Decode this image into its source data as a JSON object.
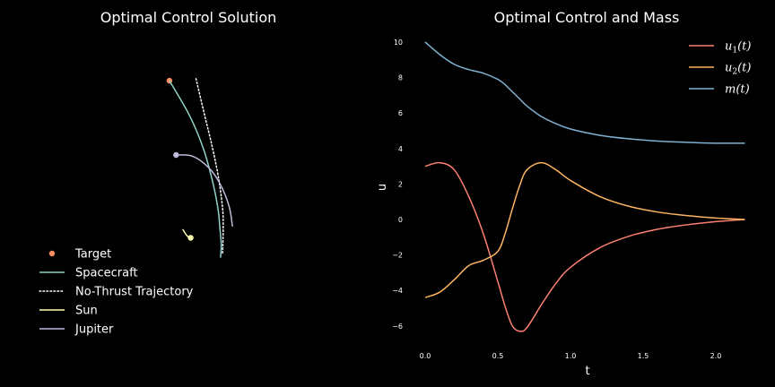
{
  "colors": {
    "background": "#000000",
    "text": "#ffffff",
    "target": "#fb8d62",
    "spacecraft": "#8dd3c7",
    "no_thrust": "#ffffff",
    "sun": "#ffffb3",
    "jupiter": "#bebada",
    "u1": "#fb8072",
    "u2": "#fdb462",
    "m": "#80b1d3"
  },
  "chart_data": [
    {
      "type": "line",
      "title": "Optimal Control Solution",
      "axes_visible": false,
      "legend": {
        "position": "bottom-left",
        "entries": [
          "Target",
          "Spacecraft",
          "No-Thrust Trajectory",
          "Sun",
          "Jupiter"
        ]
      },
      "series": [
        {
          "name": "Target",
          "style": "marker",
          "points": [
            [
              -0.15,
              1.62
            ]
          ]
        },
        {
          "name": "Spacecraft",
          "style": "solid",
          "points": [
            [
              -0.15,
              1.62
            ],
            [
              0.15,
              1.1
            ],
            [
              0.36,
              0.6
            ],
            [
              0.5,
              0.1
            ],
            [
              0.58,
              -0.3
            ],
            [
              0.61,
              -0.6
            ],
            [
              0.63,
              -0.85
            ],
            [
              0.62,
              -1.05
            ]
          ]
        },
        {
          "name": "No-Thrust Trajectory",
          "style": "dotted",
          "points": [
            [
              0.25,
              1.65
            ],
            [
              0.38,
              1.1
            ],
            [
              0.5,
              0.6
            ],
            [
              0.59,
              0.15
            ],
            [
              0.65,
              -0.3
            ],
            [
              0.66,
              -0.6
            ],
            [
              0.65,
              -1.0
            ]
          ]
        },
        {
          "name": "Sun",
          "style": "solid",
          "points": [
            [
              0.05,
              -0.62
            ],
            [
              0.1,
              -0.7
            ],
            [
              0.14,
              -0.74
            ],
            [
              0.17,
              -0.75
            ]
          ],
          "end_marker": true
        },
        {
          "name": "Jupiter",
          "style": "solid",
          "points": [
            [
              -0.05,
              0.5
            ],
            [
              0.2,
              0.48
            ],
            [
              0.45,
              0.3
            ],
            [
              0.62,
              0.05
            ],
            [
              0.75,
              -0.28
            ],
            [
              0.8,
              -0.58
            ]
          ],
          "start_marker": true
        }
      ]
    },
    {
      "type": "line",
      "title": "Optimal Control and Mass",
      "xlabel": "t",
      "ylabel": "u",
      "xlim": [
        -0.1,
        2.3
      ],
      "ylim": [
        -7.5,
        10.5
      ],
      "xticks": [
        "0.0",
        "0.5",
        "1.0",
        "1.5",
        "2.0"
      ],
      "xtick_values": [
        0.0,
        0.5,
        1.0,
        1.5,
        2.0
      ],
      "yticks": [
        "−6",
        "−4",
        "−2",
        "0",
        "2",
        "4",
        "6",
        "8",
        "10"
      ],
      "ytick_values": [
        -6,
        -4,
        -2,
        0,
        2,
        4,
        6,
        8,
        10
      ],
      "grid": false,
      "legend": {
        "position": "top-right",
        "entries": [
          "u1(t)",
          "u2(t)",
          "m(t)"
        ]
      },
      "x": [
        0.0,
        0.1,
        0.2,
        0.3,
        0.4,
        0.5,
        0.55,
        0.6,
        0.65,
        0.7,
        0.8,
        0.9,
        1.0,
        1.2,
        1.4,
        1.6,
        1.8,
        2.0,
        2.2
      ],
      "series": [
        {
          "name": "u1(t)",
          "values": [
            3.0,
            3.2,
            2.8,
            1.3,
            -0.8,
            -3.5,
            -4.9,
            -6.0,
            -6.3,
            -6.1,
            -4.8,
            -3.6,
            -2.7,
            -1.6,
            -0.95,
            -0.55,
            -0.3,
            -0.12,
            0.0
          ]
        },
        {
          "name": "u2(t)",
          "values": [
            -4.4,
            -4.1,
            -3.4,
            -2.6,
            -2.3,
            -1.8,
            -0.8,
            0.6,
            1.9,
            2.8,
            3.2,
            2.8,
            2.2,
            1.3,
            0.75,
            0.42,
            0.22,
            0.08,
            0.0
          ]
        },
        {
          "name": "m(t)",
          "values": [
            10.0,
            9.3,
            8.75,
            8.45,
            8.25,
            7.9,
            7.6,
            7.2,
            6.8,
            6.4,
            5.8,
            5.4,
            5.1,
            4.75,
            4.55,
            4.42,
            4.35,
            4.3,
            4.3
          ]
        }
      ]
    }
  ]
}
